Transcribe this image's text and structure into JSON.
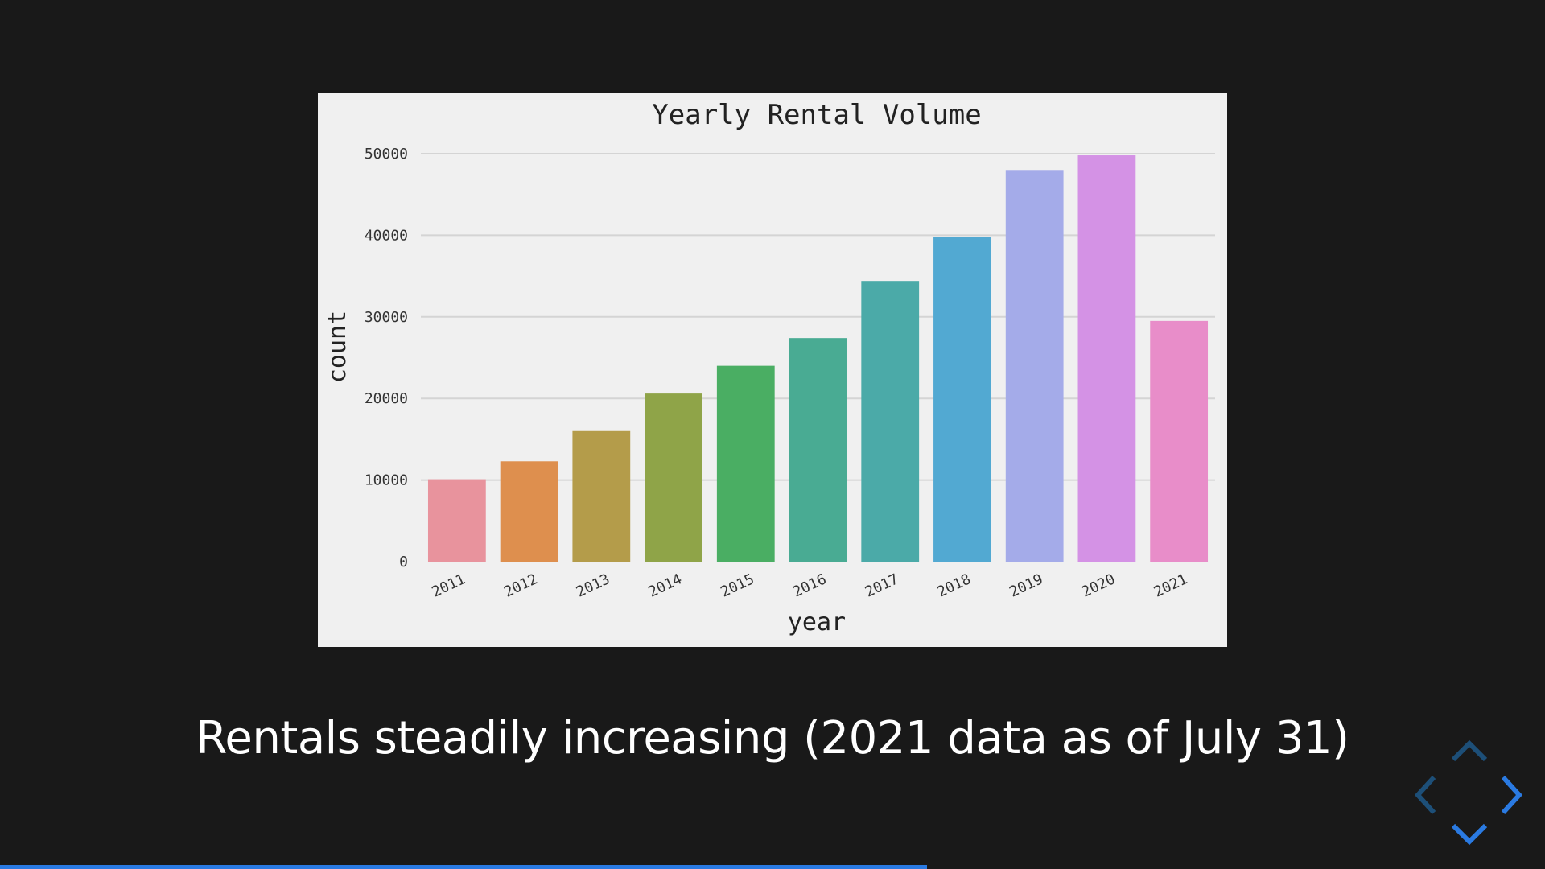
{
  "slide": {
    "caption": "Rentals steadily increasing (2021 data as of July 31)",
    "progress_fraction": 0.6
  },
  "colors": {
    "background": "#191919",
    "chart_background": "#f0f0f0",
    "accent": "#2a7ae2",
    "nav_dim": "#1d4f78"
  },
  "navigation": {
    "up_icon": "chevron-up-icon",
    "down_icon": "chevron-down-icon",
    "left_icon": "chevron-left-icon",
    "right_icon": "chevron-right-icon"
  },
  "chart_data": {
    "type": "bar",
    "title": "Yearly Rental Volume",
    "xlabel": "year",
    "ylabel": "count",
    "categories": [
      "2011",
      "2012",
      "2013",
      "2014",
      "2015",
      "2016",
      "2017",
      "2018",
      "2019",
      "2020",
      "2021"
    ],
    "values": [
      10100,
      12300,
      16000,
      20600,
      24000,
      27400,
      34400,
      39800,
      48000,
      49800,
      29500
    ],
    "colors": [
      "#e8939d",
      "#de8f4e",
      "#b49c4a",
      "#8fa448",
      "#4aae63",
      "#49ab93",
      "#4baaa8",
      "#52a9d2",
      "#a4abe9",
      "#d492e5",
      "#e88dc9"
    ],
    "ylim": [
      0,
      50000
    ],
    "yticks": [
      0,
      10000,
      20000,
      30000,
      40000,
      50000
    ],
    "grid": true,
    "legend": "none"
  }
}
